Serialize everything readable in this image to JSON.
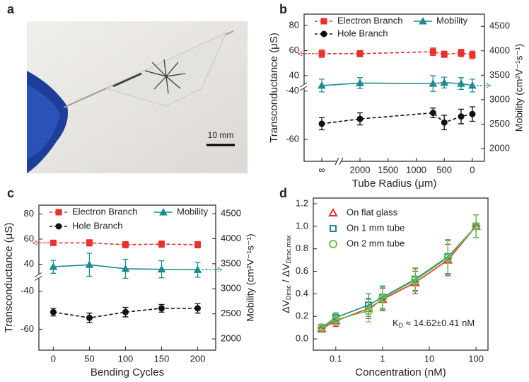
{
  "photo": {
    "label": "a",
    "scale_bar": "10 mm"
  },
  "chart_data": [
    {
      "label": "b",
      "type": "line",
      "xlabel": "Tube Radius (μm)",
      "ylabel": "Transconductance (μS)",
      "y2label": "Mobility (cm²V⁻¹s⁻¹)",
      "x": [
        "∞",
        2000,
        700,
        500,
        200,
        0
      ],
      "xlim": [
        2340,
        -215
      ],
      "xticks": [
        "∞",
        2000,
        1500,
        1000,
        500,
        0
      ],
      "ylim": [
        -69,
        89
      ],
      "ybreak": [
        -39.5,
        32
      ],
      "yticks": [
        -60,
        -40,
        40,
        60,
        80
      ],
      "y2lim": [
        1740,
        4750
      ],
      "y2ticks": [
        2000,
        2500,
        3000,
        3500,
        4000,
        4500
      ],
      "series": [
        {
          "name": "Electron Branch",
          "color": "#e8312f",
          "marker": "square",
          "dash": true,
          "values": [
            57.5,
            57.5,
            59,
            57,
            58,
            56.5
          ],
          "errors": [
            3,
            2.5,
            3,
            2.5,
            3,
            3
          ]
        },
        {
          "name": "Hole Branch",
          "color": "#111111",
          "marker": "circle",
          "dash": true,
          "values": [
            -53.5,
            -51.5,
            -49,
            -53,
            -50.5,
            -49.5
          ],
          "errors": [
            2.5,
            2.5,
            2,
            3,
            3,
            3
          ]
        },
        {
          "name": "Mobility",
          "color": "#1f8a8f",
          "marker": "triangle",
          "axis": "y2",
          "values": [
            3290,
            3340,
            3330,
            3350,
            3330,
            3290
          ],
          "errors": [
            130,
            110,
            160,
            110,
            120,
            130
          ]
        }
      ]
    },
    {
      "label": "c",
      "type": "line",
      "xlabel": "Bending Cycles",
      "ylabel": "Transconductance (μS)",
      "y2label": "Mobility (cm²V⁻¹s⁻¹)",
      "x": [
        0,
        50,
        100,
        150,
        200
      ],
      "xlim": [
        -20,
        225
      ],
      "xticks": [
        0,
        50,
        100,
        150,
        200
      ],
      "ylim": [
        -71,
        87
      ],
      "ybreak": [
        -34,
        31
      ],
      "yticks": [
        -60,
        -40,
        40,
        60,
        80
      ],
      "y2lim": [
        1775,
        4670
      ],
      "y2ticks": [
        2000,
        2500,
        3000,
        3500,
        4000,
        4500
      ],
      "series": [
        {
          "name": "Electron Branch",
          "color": "#e8312f",
          "marker": "square",
          "dash": true,
          "values": [
            57,
            57,
            55.5,
            56,
            55.5
          ],
          "errors": [
            2,
            2.5,
            2.5,
            2.5,
            2.5
          ]
        },
        {
          "name": "Hole Branch",
          "color": "#111111",
          "marker": "circle",
          "dash": true,
          "values": [
            -51,
            -54,
            -51,
            -49,
            -49
          ],
          "errors": [
            2,
            2.5,
            2.5,
            2,
            2.5
          ]
        },
        {
          "name": "Mobility",
          "color": "#1f8a8f",
          "marker": "triangle",
          "axis": "y2",
          "values": [
            3440,
            3480,
            3400,
            3390,
            3380
          ],
          "errors": [
            130,
            230,
            190,
            170,
            150
          ]
        }
      ]
    },
    {
      "label": "d",
      "type": "line",
      "xlabel": "Concentration (nM)",
      "ylabel": [
        "ΔV",
        "Dirac",
        " / ΔV",
        "Dirac,max"
      ],
      "annotation": [
        "K",
        "D",
        " ≈ 14.62±0.41 nM"
      ],
      "xlog": true,
      "hollow": true,
      "x": [
        0.05,
        0.1,
        0.5,
        1,
        5,
        25,
        100
      ],
      "xlim": [
        0.033,
        180
      ],
      "xticks": [
        0.1,
        1,
        10,
        100
      ],
      "ylim": [
        -0.1,
        1.25
      ],
      "yticks": [
        {
          "value": 0,
          "label": "0.0"
        },
        0.2,
        0.4,
        0.6,
        0.8,
        {
          "value": 1,
          "label": "1.0"
        },
        1.2
      ],
      "series": [
        {
          "name": "On flat glass",
          "color": "#e8312f",
          "marker": "triangle",
          "values": [
            0.09,
            0.16,
            0.27,
            0.35,
            0.5,
            0.7,
            1.0
          ],
          "errors": [
            0.03,
            0.05,
            0.09,
            0.1,
            0.1,
            0.14,
            0.1
          ]
        },
        {
          "name": "On 1 mm tube",
          "color": "#1f8a8f",
          "marker": "square",
          "values": [
            0.1,
            0.19,
            0.3,
            0.37,
            0.53,
            0.73,
            1.0
          ],
          "errors": [
            0.03,
            0.04,
            0.1,
            0.1,
            0.1,
            0.15,
            0.1
          ]
        },
        {
          "name": "On 2 mm tube",
          "color": "#6cc24a",
          "marker": "circle",
          "values": [
            0.1,
            0.17,
            0.25,
            0.36,
            0.52,
            0.72,
            1.0
          ],
          "errors": [
            0.03,
            0.05,
            0.1,
            0.1,
            0.1,
            0.15,
            0.1
          ]
        }
      ]
    }
  ]
}
